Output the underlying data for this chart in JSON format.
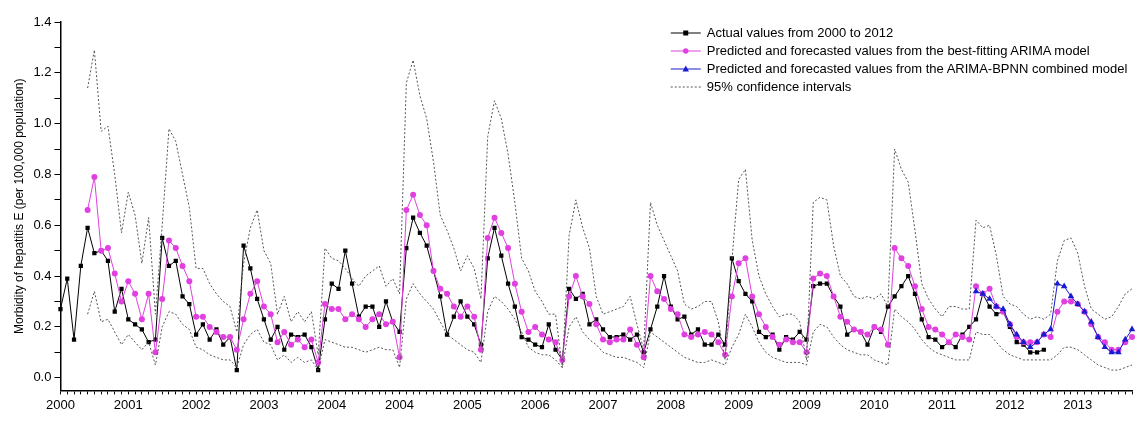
{
  "chart_data": {
    "type": "line",
    "ylabel": "Morbidity of hepatitis E (per 100,000 population)",
    "categories": [
      "2000",
      null,
      null,
      null,
      null,
      null,
      null,
      null,
      null,
      null,
      "2001",
      null,
      null,
      null,
      null,
      null,
      null,
      null,
      null,
      null,
      "2002",
      null,
      null,
      null,
      null,
      null,
      null,
      null,
      null,
      null,
      "2003",
      null,
      null,
      null,
      null,
      null,
      null,
      null,
      null,
      null,
      "2004",
      null,
      null,
      null,
      null,
      null,
      null,
      null,
      null,
      null,
      "2004",
      null,
      null,
      null,
      null,
      null,
      null,
      null,
      null,
      null,
      "2005",
      null,
      null,
      null,
      null,
      null,
      null,
      null,
      null,
      null,
      "2006",
      null,
      null,
      null,
      null,
      null,
      null,
      null,
      null,
      null,
      "2007",
      null,
      null,
      null,
      null,
      null,
      null,
      null,
      null,
      null,
      "2008",
      null,
      null,
      null,
      null,
      null,
      null,
      null,
      null,
      null,
      "2009",
      null,
      null,
      null,
      null,
      null,
      null,
      null,
      null,
      null,
      "2009",
      null,
      null,
      null,
      null,
      null,
      null,
      null,
      null,
      null,
      "2010",
      null,
      null,
      null,
      null,
      null,
      null,
      null,
      null,
      null,
      "2011",
      null,
      null,
      null,
      null,
      null,
      null,
      null,
      null,
      null,
      "2012",
      null,
      null,
      null,
      null,
      null,
      null,
      null,
      null,
      null,
      "2013",
      null,
      null,
      null,
      null,
      null,
      null,
      null,
      null
    ],
    "ylim": [
      -0.05,
      1.4
    ],
    "yticks": [
      {
        "value": 0,
        "label": "0.0"
      },
      {
        "value": 0.1,
        "label": null
      },
      0.2,
      {
        "value": 0.3,
        "label": null
      },
      0.4,
      {
        "value": 0.5,
        "label": null
      },
      0.6,
      {
        "value": 0.7,
        "label": null
      },
      0.8,
      {
        "value": 0.9,
        "label": null
      },
      {
        "value": 1,
        "label": "1.0"
      },
      {
        "value": 1.1,
        "label": null
      },
      1.2,
      {
        "value": 1.3,
        "label": null
      },
      1.4
    ],
    "grid": false,
    "legend": "top right",
    "series": [
      {
        "name": "Actual values from 2000 to 2012",
        "color": "#000000",
        "marker": "square",
        "values": [
          0.27,
          0.39,
          0.15,
          0.44,
          0.59,
          0.49,
          0.5,
          0.46,
          0.26,
          0.35,
          0.23,
          0.21,
          0.19,
          0.14,
          0.15,
          0.55,
          0.44,
          0.46,
          0.32,
          0.29,
          0.17,
          0.21,
          0.15,
          0.19,
          0.13,
          0.16,
          0.03,
          0.52,
          0.43,
          0.31,
          0.23,
          0.15,
          0.2,
          0.11,
          0.17,
          0.16,
          0.17,
          0.12,
          0.03,
          0.23,
          0.37,
          0.35,
          0.5,
          0.37,
          0.24,
          0.28,
          0.28,
          0.2,
          0.3,
          0.22,
          0.18,
          0.51,
          0.63,
          0.57,
          0.52,
          0.42,
          0.32,
          0.17,
          0.24,
          0.3,
          0.24,
          0.21,
          0.13,
          0.47,
          0.59,
          0.48,
          0.37,
          0.28,
          0.16,
          0.15,
          0.13,
          0.12,
          0.21,
          0.11,
          0.07,
          0.35,
          0.31,
          0.33,
          0.21,
          0.23,
          0.19,
          0.16,
          0.16,
          0.17,
          0.15,
          0.17,
          0.1,
          0.19,
          0.28,
          0.4,
          0.28,
          0.23,
          0.24,
          0.17,
          0.19,
          0.13,
          0.13,
          0.17,
          0.13,
          0.47,
          0.38,
          0.33,
          0.3,
          0.18,
          0.16,
          0.17,
          0.11,
          0.16,
          0.15,
          0.18,
          0.15,
          0.36,
          0.37,
          0.37,
          0.32,
          0.28,
          0.17,
          0.19,
          0.18,
          0.13,
          0.2,
          0.18,
          0.28,
          0.32,
          0.36,
          0.4,
          0.33,
          0.23,
          0.16,
          0.15,
          0.12,
          0.14,
          0.12,
          0.17,
          0.2,
          0.23,
          0.33,
          0.28,
          0.25,
          0.26,
          0.2,
          0.14,
          0.13,
          0.1,
          0.1,
          0.11,
          null,
          null,
          null,
          null,
          null,
          null,
          null,
          null,
          null,
          null,
          null,
          null,
          null
        ]
      },
      {
        "name": "Predicted and forecasted values from the best-fitting ARIMA model",
        "color": "#e040e0",
        "marker": "circle",
        "values": [
          null,
          null,
          null,
          null,
          0.66,
          0.79,
          0.5,
          0.51,
          0.41,
          0.3,
          0.38,
          0.33,
          0.23,
          0.33,
          0.1,
          0.31,
          0.54,
          0.51,
          0.44,
          0.38,
          0.24,
          0.24,
          0.2,
          0.18,
          0.16,
          0.16,
          0.11,
          0.23,
          0.33,
          0.38,
          0.28,
          0.25,
          0.14,
          0.18,
          0.13,
          0.15,
          0.12,
          0.15,
          0.06,
          0.29,
          0.27,
          0.27,
          0.23,
          0.25,
          0.23,
          0.2,
          0.23,
          0.25,
          0.21,
          0.22,
          0.08,
          0.66,
          0.72,
          0.64,
          0.6,
          0.42,
          0.35,
          0.33,
          0.28,
          0.24,
          0.28,
          0.24,
          0.11,
          0.55,
          0.63,
          0.57,
          0.51,
          0.37,
          0.26,
          0.18,
          0.2,
          0.17,
          0.15,
          0.14,
          0.07,
          0.32,
          0.4,
          0.32,
          0.29,
          0.21,
          0.15,
          0.14,
          0.15,
          0.15,
          0.19,
          0.13,
          0.08,
          0.4,
          0.34,
          0.31,
          0.27,
          0.25,
          0.17,
          0.16,
          0.17,
          0.18,
          0.17,
          0.14,
          0.09,
          0.32,
          0.45,
          0.47,
          0.32,
          0.25,
          0.2,
          0.16,
          0.13,
          0.15,
          0.14,
          0.14,
          0.1,
          0.39,
          0.41,
          0.4,
          0.32,
          0.24,
          0.22,
          0.19,
          0.18,
          0.17,
          0.2,
          0.19,
          0.13,
          0.51,
          0.47,
          0.44,
          0.36,
          0.27,
          0.2,
          0.19,
          0.17,
          0.14,
          0.17,
          0.16,
          0.15,
          0.36,
          0.33,
          0.35,
          0.28,
          0.26,
          0.21,
          0.16,
          0.14,
          0.14,
          0.14,
          0.17,
          0.16,
          0.26,
          0.3,
          0.3,
          0.29,
          0.26,
          0.21,
          0.16,
          0.14,
          0.11,
          0.11,
          0.14,
          0.16
        ]
      },
      {
        "name": "Predicted and forecasted values from the ARIMA-BPNN combined model",
        "color": "#1a1ad0",
        "marker": "triangle",
        "values": [
          null,
          null,
          null,
          null,
          null,
          null,
          null,
          null,
          null,
          null,
          null,
          null,
          null,
          null,
          null,
          null,
          null,
          null,
          null,
          null,
          null,
          null,
          null,
          null,
          null,
          null,
          null,
          null,
          null,
          null,
          null,
          null,
          null,
          null,
          null,
          null,
          null,
          null,
          null,
          null,
          null,
          null,
          null,
          null,
          null,
          null,
          null,
          null,
          null,
          null,
          null,
          null,
          null,
          null,
          null,
          null,
          null,
          null,
          null,
          null,
          null,
          null,
          null,
          null,
          null,
          null,
          null,
          null,
          null,
          null,
          null,
          null,
          null,
          null,
          null,
          null,
          null,
          null,
          null,
          null,
          null,
          null,
          null,
          null,
          null,
          null,
          null,
          null,
          null,
          null,
          null,
          null,
          null,
          null,
          null,
          null,
          null,
          null,
          null,
          null,
          null,
          null,
          null,
          null,
          null,
          null,
          null,
          null,
          null,
          null,
          null,
          null,
          null,
          null,
          null,
          null,
          null,
          null,
          null,
          null,
          null,
          null,
          null,
          null,
          null,
          null,
          null,
          null,
          null,
          null,
          null,
          null,
          null,
          null,
          null,
          0.34,
          0.33,
          0.31,
          0.28,
          0.27,
          0.21,
          0.17,
          0.14,
          0.12,
          0.14,
          0.17,
          0.19,
          0.37,
          0.36,
          0.32,
          0.29,
          0.26,
          0.22,
          0.16,
          0.12,
          0.1,
          0.1,
          0.15,
          0.19
        ]
      },
      {
        "name": "95% confidence intervals",
        "color": "#555555",
        "marker": "none",
        "line_style": "dotted",
        "values": [
          null,
          null,
          null,
          null,
          1.14,
          1.29,
          0.97,
          0.99,
          0.8,
          0.57,
          0.73,
          0.64,
          0.45,
          0.63,
          0.25,
          0.6,
          0.98,
          0.93,
          0.8,
          0.67,
          0.43,
          0.43,
          0.37,
          0.33,
          0.3,
          0.28,
          0.18,
          0.45,
          0.59,
          0.66,
          0.5,
          0.45,
          0.25,
          0.32,
          0.22,
          0.26,
          0.22,
          0.26,
          0.09,
          0.51,
          0.47,
          0.46,
          0.43,
          0.39,
          0.36,
          0.4,
          0.42,
          0.44,
          0.36,
          0.39,
          0.33,
          1.16,
          1.25,
          1.11,
          1.02,
          0.85,
          0.64,
          0.58,
          0.51,
          0.42,
          0.48,
          0.43,
          0.31,
          0.95,
          1.09,
          1.02,
          0.88,
          0.69,
          0.47,
          0.42,
          0.34,
          0.3,
          0.25,
          0.25,
          0.04,
          0.56,
          0.7,
          0.59,
          0.51,
          0.32,
          0.25,
          0.26,
          0.27,
          0.28,
          0.32,
          0.21,
          0.11,
          0.69,
          0.6,
          0.54,
          0.48,
          0.42,
          0.29,
          0.27,
          0.28,
          0.3,
          0.3,
          0.22,
          0.07,
          0.46,
          0.78,
          0.82,
          0.54,
          0.4,
          0.33,
          0.28,
          0.24,
          0.25,
          0.25,
          0.22,
          0.07,
          0.69,
          0.71,
          0.7,
          0.52,
          0.4,
          0.37,
          0.32,
          0.31,
          0.32,
          0.31,
          0.33,
          0.28,
          0.9,
          0.82,
          0.77,
          0.58,
          0.37,
          0.31,
          0.27,
          0.24,
          0.28,
          0.28,
          0.27,
          0.27,
          0.62,
          0.59,
          0.6,
          0.48,
          0.32,
          0.29,
          0.28,
          0.25,
          0.23,
          0.24,
          0.23,
          0.25,
          0.46,
          0.54,
          0.55,
          0.49,
          0.36,
          0.27,
          0.25,
          0.23,
          0.24,
          0.28,
          0.33,
          0.35
        ]
      },
      {
        "color": "#555555",
        "marker": "none",
        "line_style": "dotted",
        "values": [
          null,
          null,
          null,
          null,
          0.25,
          0.34,
          0.22,
          0.23,
          0.18,
          0.13,
          0.17,
          0.14,
          0.11,
          0.14,
          0.05,
          0.2,
          0.26,
          0.25,
          0.21,
          0.19,
          0.12,
          0.11,
          0.09,
          0.08,
          0.07,
          0.07,
          0.04,
          0.13,
          0.17,
          0.19,
          0.14,
          0.13,
          0.07,
          0.09,
          0.06,
          0.08,
          0.06,
          0.07,
          0.03,
          0.15,
          0.14,
          0.13,
          0.12,
          0.12,
          0.11,
          0.1,
          0.11,
          0.12,
          0.11,
          0.11,
          0.04,
          0.31,
          0.37,
          0.33,
          0.3,
          0.27,
          0.22,
          0.17,
          0.15,
          0.13,
          0.11,
          0.1,
          0.06,
          0.26,
          0.32,
          0.3,
          0.27,
          0.23,
          0.18,
          0.12,
          0.1,
          0.09,
          0.09,
          0.07,
          0.04,
          0.2,
          0.24,
          0.18,
          0.15,
          0.13,
          0.1,
          0.09,
          0.08,
          0.08,
          0.07,
          0.06,
          0.04,
          0.18,
          0.16,
          0.14,
          0.12,
          0.1,
          0.08,
          0.07,
          0.06,
          0.06,
          0.07,
          0.06,
          0.05,
          0.12,
          0.17,
          0.25,
          0.2,
          0.14,
          0.1,
          0.08,
          0.07,
          0.06,
          0.06,
          0.06,
          0.05,
          0.18,
          0.21,
          0.2,
          0.16,
          0.13,
          0.11,
          0.1,
          0.09,
          0.09,
          0.07,
          0.06,
          0.05,
          0.27,
          0.24,
          0.22,
          0.19,
          0.15,
          0.12,
          0.1,
          0.09,
          0.08,
          0.07,
          0.07,
          0.07,
          0.18,
          0.17,
          0.17,
          0.14,
          0.11,
          0.09,
          0.08,
          0.07,
          0.07,
          0.07,
          0.07,
          0.07,
          0.09,
          0.12,
          0.12,
          0.11,
          0.09,
          0.07,
          0.05,
          0.04,
          0.03,
          0.03,
          0.04,
          0.05
        ]
      }
    ]
  }
}
